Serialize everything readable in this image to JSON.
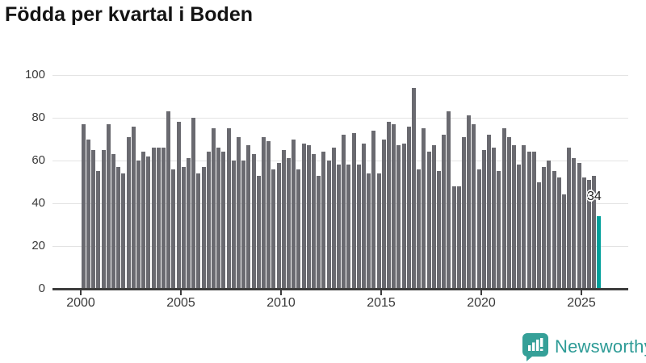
{
  "title": "Födda per kvartal i Boden",
  "annotation": {
    "last_value_label": "34"
  },
  "footer": {
    "brand": "Newsworthy"
  },
  "colors": {
    "bar": "#6a6a70",
    "highlight": "#00a09b",
    "gridline": "#e3e3e3",
    "axis": "#3d3d3d",
    "title_text": "#141414",
    "tick_text": "#3a3a3a",
    "brand_teal": "#2d9b96",
    "background": "#ffffff"
  },
  "chart_data": {
    "type": "bar",
    "title": "Födda per kvartal i Boden",
    "x_unit": "quarter",
    "x_start": "2000 Q1",
    "x_end": "2025 Q4",
    "x_tick_labels": [
      "2000",
      "2005",
      "2010",
      "2015",
      "2020",
      "2025"
    ],
    "y_ticks": [
      0,
      20,
      40,
      60,
      80,
      100
    ],
    "ylim": [
      0,
      100
    ],
    "grid": "horizontal",
    "legend": "none",
    "highlight_last_bar": true,
    "series": [
      {
        "name": "Födda per kvartal",
        "values": [
          77,
          70,
          65,
          55,
          65,
          77,
          63,
          57,
          54,
          71,
          76,
          60,
          64,
          62,
          66,
          66,
          66,
          83,
          56,
          78,
          57,
          61,
          80,
          54,
          57,
          64,
          75,
          66,
          64,
          75,
          60,
          71,
          60,
          67,
          63,
          53,
          71,
          69,
          56,
          59,
          65,
          61,
          70,
          56,
          68,
          67,
          63,
          53,
          64,
          60,
          66,
          58,
          72,
          58,
          73,
          58,
          68,
          54,
          74,
          54,
          70,
          78,
          77,
          67,
          68,
          76,
          94,
          56,
          75,
          64,
          67,
          55,
          72,
          83,
          48,
          48,
          71,
          81,
          77,
          56,
          65,
          72,
          66,
          55,
          75,
          71,
          67,
          58,
          67,
          64,
          64,
          50,
          57,
          60,
          55,
          52,
          44,
          66,
          61,
          59,
          52,
          51,
          53,
          34
        ]
      }
    ]
  }
}
